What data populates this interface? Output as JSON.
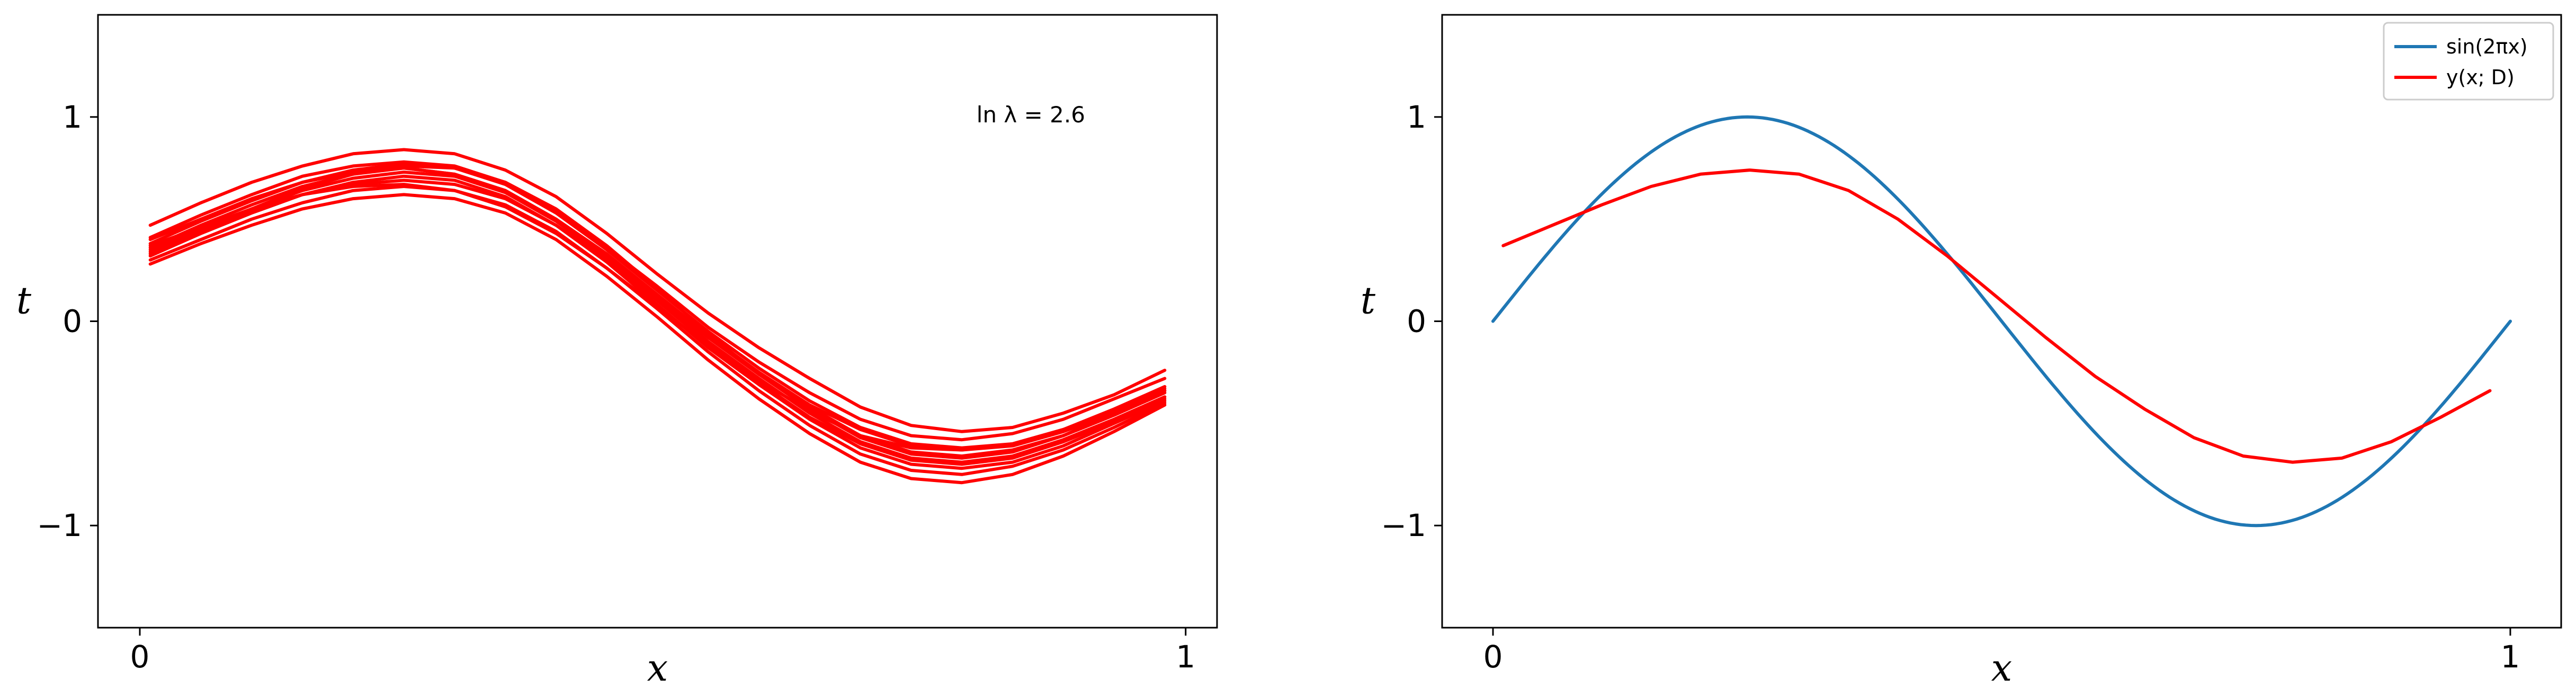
{
  "chart_data": [
    {
      "type": "line",
      "title": "",
      "xlabel": "x",
      "ylabel": "t",
      "xlim": [
        -0.04,
        1.03
      ],
      "ylim": [
        -1.5,
        1.5
      ],
      "xticks": [
        0,
        1
      ],
      "xtick_labels": [
        "0",
        "1"
      ],
      "yticks": [
        -1,
        0,
        1
      ],
      "ytick_labels": [
        "−1",
        "0",
        "1"
      ],
      "annotation": "ln λ = 2.6",
      "color": "#ff0000",
      "x": [
        0.01,
        0.0585,
        0.107,
        0.1555,
        0.204,
        0.2525,
        0.301,
        0.3495,
        0.398,
        0.4465,
        0.495,
        0.5435,
        0.592,
        0.6405,
        0.689,
        0.7375,
        0.786,
        0.8345,
        0.883,
        0.9315,
        0.98
      ],
      "series": [
        {
          "values": [
            0.47,
            0.58,
            0.68,
            0.76,
            0.82,
            0.84,
            0.82,
            0.74,
            0.61,
            0.43,
            0.23,
            0.04,
            -0.13,
            -0.28,
            -0.42,
            -0.51,
            -0.54,
            -0.52,
            -0.45,
            -0.36,
            -0.24
          ]
        },
        {
          "values": [
            0.41,
            0.52,
            0.62,
            0.71,
            0.76,
            0.78,
            0.76,
            0.68,
            0.54,
            0.36,
            0.17,
            -0.03,
            -0.2,
            -0.35,
            -0.48,
            -0.56,
            -0.58,
            -0.55,
            -0.48,
            -0.38,
            -0.28
          ]
        },
        {
          "values": [
            0.38,
            0.49,
            0.59,
            0.68,
            0.74,
            0.77,
            0.75,
            0.67,
            0.53,
            0.35,
            0.15,
            -0.05,
            -0.23,
            -0.39,
            -0.52,
            -0.6,
            -0.62,
            -0.6,
            -0.53,
            -0.43,
            -0.32
          ]
        },
        {
          "values": [
            0.36,
            0.47,
            0.57,
            0.66,
            0.72,
            0.75,
            0.72,
            0.64,
            0.5,
            0.32,
            0.12,
            -0.08,
            -0.26,
            -0.42,
            -0.56,
            -0.64,
            -0.66,
            -0.63,
            -0.56,
            -0.46,
            -0.35
          ]
        },
        {
          "values": [
            0.34,
            0.45,
            0.55,
            0.64,
            0.7,
            0.73,
            0.71,
            0.63,
            0.49,
            0.31,
            0.11,
            -0.1,
            -0.28,
            -0.45,
            -0.59,
            -0.67,
            -0.69,
            -0.66,
            -0.58,
            -0.48,
            -0.37
          ]
        },
        {
          "values": [
            0.32,
            0.43,
            0.53,
            0.62,
            0.68,
            0.71,
            0.69,
            0.61,
            0.47,
            0.29,
            0.08,
            -0.13,
            -0.31,
            -0.48,
            -0.62,
            -0.7,
            -0.72,
            -0.69,
            -0.61,
            -0.5,
            -0.39
          ]
        },
        {
          "values": [
            0.3,
            0.4,
            0.5,
            0.58,
            0.64,
            0.66,
            0.64,
            0.57,
            0.44,
            0.26,
            0.06,
            -0.15,
            -0.34,
            -0.51,
            -0.65,
            -0.73,
            -0.75,
            -0.71,
            -0.63,
            -0.52,
            -0.4
          ]
        },
        {
          "values": [
            0.28,
            0.38,
            0.47,
            0.55,
            0.6,
            0.62,
            0.6,
            0.53,
            0.4,
            0.22,
            0.02,
            -0.19,
            -0.38,
            -0.55,
            -0.69,
            -0.77,
            -0.79,
            -0.75,
            -0.66,
            -0.54,
            -0.41
          ]
        },
        {
          "values": [
            0.4,
            0.5,
            0.6,
            0.68,
            0.73,
            0.75,
            0.72,
            0.64,
            0.5,
            0.33,
            0.13,
            -0.07,
            -0.25,
            -0.41,
            -0.53,
            -0.61,
            -0.63,
            -0.61,
            -0.54,
            -0.45,
            -0.34
          ]
        },
        {
          "values": [
            0.35,
            0.45,
            0.54,
            0.62,
            0.67,
            0.69,
            0.67,
            0.6,
            0.47,
            0.3,
            0.1,
            -0.11,
            -0.3,
            -0.47,
            -0.6,
            -0.68,
            -0.7,
            -0.67,
            -0.59,
            -0.49,
            -0.38
          ]
        },
        {
          "values": [
            0.33,
            0.44,
            0.55,
            0.65,
            0.72,
            0.76,
            0.75,
            0.68,
            0.55,
            0.37,
            0.16,
            -0.06,
            -0.26,
            -0.43,
            -0.57,
            -0.65,
            -0.67,
            -0.64,
            -0.56,
            -0.45,
            -0.33
          ]
        },
        {
          "values": [
            0.37,
            0.46,
            0.55,
            0.62,
            0.66,
            0.67,
            0.64,
            0.56,
            0.43,
            0.26,
            0.07,
            -0.12,
            -0.29,
            -0.44,
            -0.56,
            -0.62,
            -0.63,
            -0.6,
            -0.53,
            -0.44,
            -0.34
          ]
        }
      ]
    },
    {
      "type": "line",
      "title": "",
      "xlabel": "x",
      "ylabel": "t",
      "xlim": [
        -0.05,
        1.05
      ],
      "ylim": [
        -1.5,
        1.5
      ],
      "xticks": [
        0,
        1
      ],
      "xtick_labels": [
        "0",
        "1"
      ],
      "yticks": [
        -1,
        0,
        1
      ],
      "ytick_labels": [
        "−1",
        "0",
        "1"
      ],
      "legend": {
        "position": "top-right",
        "entries": [
          "sin(2πx)",
          "y(x; D)"
        ]
      },
      "series": [
        {
          "name": "sin(2πx)",
          "color": "#1f77b4",
          "function": "sin(2πx)",
          "x_range": [
            0,
            1
          ]
        },
        {
          "name": "y(x; D)",
          "color": "#ff0000",
          "x": [
            0.01,
            0.0585,
            0.107,
            0.1555,
            0.204,
            0.2525,
            0.301,
            0.3495,
            0.398,
            0.4465,
            0.495,
            0.5435,
            0.592,
            0.6405,
            0.689,
            0.7375,
            0.786,
            0.8345,
            0.883,
            0.9315,
            0.98
          ],
          "values": [
            0.37,
            0.47,
            0.57,
            0.66,
            0.72,
            0.74,
            0.72,
            0.64,
            0.5,
            0.32,
            0.12,
            -0.08,
            -0.27,
            -0.43,
            -0.57,
            -0.66,
            -0.69,
            -0.67,
            -0.59,
            -0.47,
            -0.34
          ]
        }
      ]
    }
  ]
}
